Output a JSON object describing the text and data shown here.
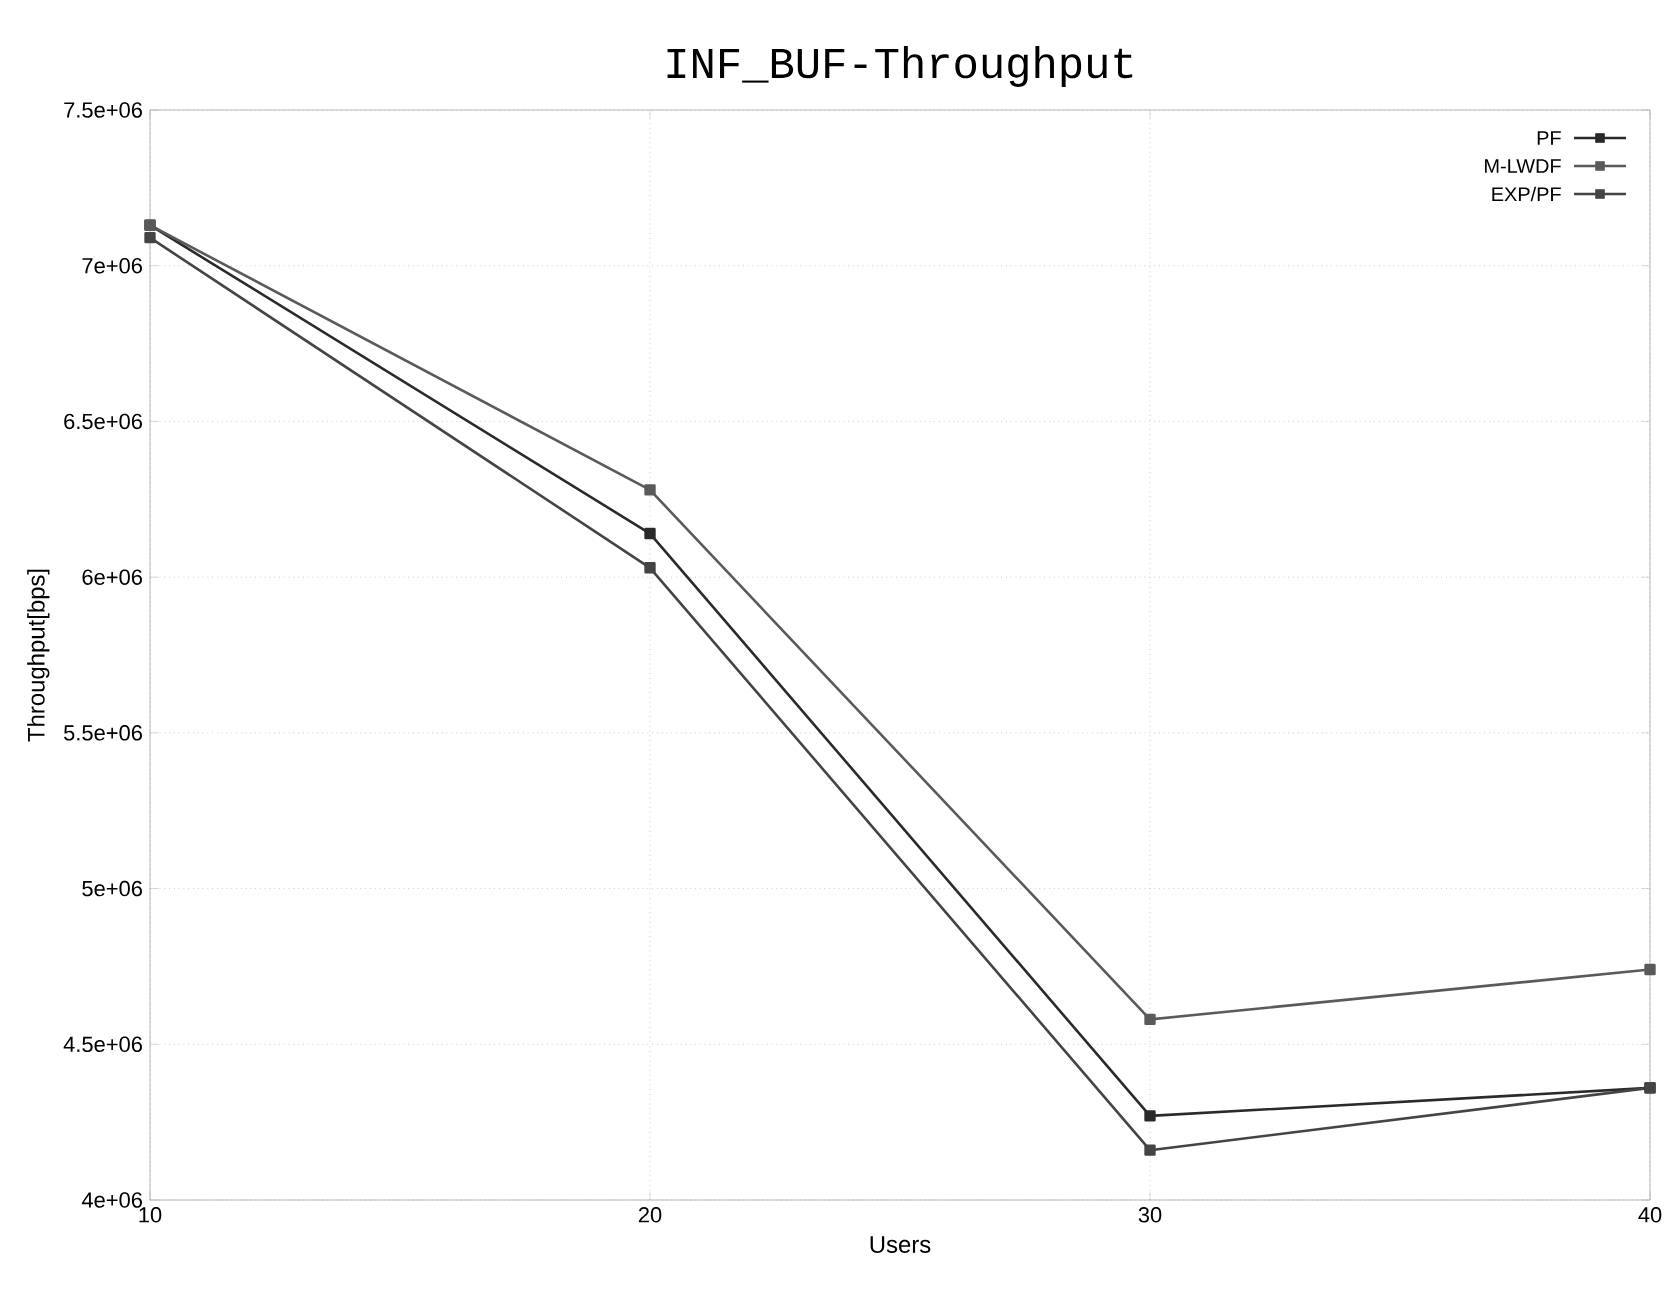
{
  "chart_data": {
    "type": "line",
    "title": "INF_BUF-Throughput",
    "xlabel": "Users",
    "ylabel": "Throughput[bps]",
    "x": [
      10,
      20,
      30,
      40
    ],
    "series": [
      {
        "name": "PF",
        "color": "#2a2a2a",
        "values": [
          7130000,
          6140000,
          4270000,
          4360000
        ]
      },
      {
        "name": "M-LWDF",
        "color": "#5a5a5a",
        "values": [
          7130000,
          6280000,
          4580000,
          4740000
        ]
      },
      {
        "name": "EXP/PF",
        "color": "#444444",
        "values": [
          7090000,
          6030000,
          4160000,
          4360000
        ]
      }
    ],
    "xlim": [
      10,
      40
    ],
    "ylim": [
      4000000,
      7500000
    ],
    "xticks": [
      10,
      20,
      30,
      40
    ],
    "yticks": [
      {
        "value": 4000000,
        "label": "4e+06"
      },
      {
        "value": 4500000,
        "label": "4.5e+06"
      },
      {
        "value": 5000000,
        "label": "5e+06"
      },
      {
        "value": 5500000,
        "label": "5.5e+06"
      },
      {
        "value": 6000000,
        "label": "6e+06"
      },
      {
        "value": 6500000,
        "label": "6.5e+06"
      },
      {
        "value": 7000000,
        "label": "7e+06"
      },
      {
        "value": 7500000,
        "label": "7.5e+06"
      }
    ],
    "grid": true,
    "legend": "top right",
    "marker": "square",
    "line_style": "solid"
  }
}
